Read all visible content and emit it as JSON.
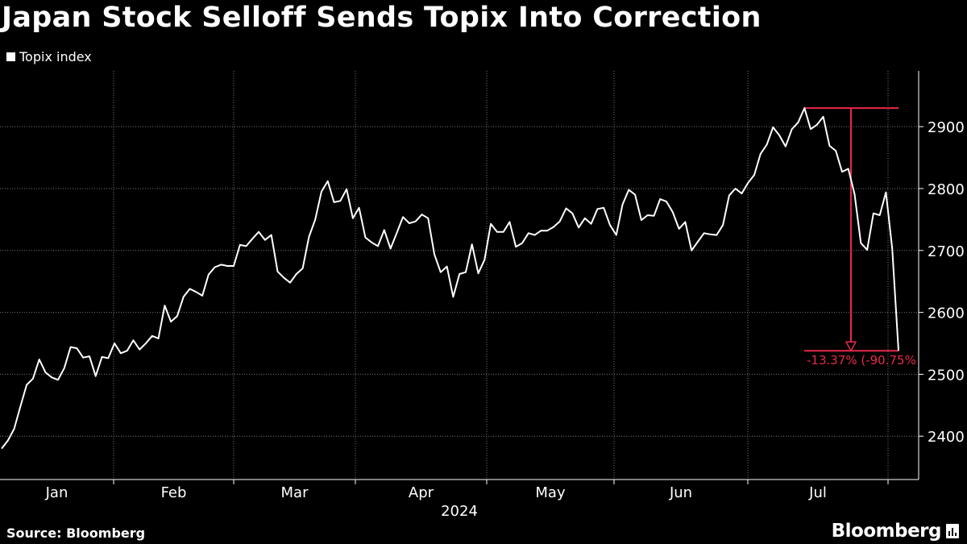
{
  "header": {
    "title": "Japan Stock Selloff Sends Topix Into Correction",
    "legend_label": "Topix index"
  },
  "footer": {
    "source": "Source: Bloomberg",
    "brand": "Bloomberg"
  },
  "colors": {
    "background": "#000000",
    "line": "#ffffff",
    "annotation": "#e8294a",
    "grid": "#777777"
  },
  "chart_data": {
    "type": "line",
    "title": "Japan Stock Selloff Sends Topix Into Correction",
    "xlabel": "2024",
    "ylabel": "",
    "series": [
      {
        "name": "Topix index",
        "values": [
          2380,
          2393,
          2412,
          2448,
          2483,
          2493,
          2524,
          2503,
          2495,
          2491,
          2510,
          2544,
          2542,
          2527,
          2529,
          2497,
          2528,
          2526,
          2550,
          2534,
          2538,
          2555,
          2540,
          2550,
          2562,
          2558,
          2611,
          2585,
          2594,
          2625,
          2638,
          2633,
          2627,
          2661,
          2673,
          2677,
          2675,
          2675,
          2709,
          2707,
          2719,
          2730,
          2717,
          2725,
          2666,
          2656,
          2648,
          2662,
          2671,
          2722,
          2750,
          2795,
          2812,
          2778,
          2780,
          2799,
          2752,
          2769,
          2721,
          2713,
          2707,
          2733,
          2703,
          2728,
          2754,
          2744,
          2747,
          2758,
          2752,
          2694,
          2665,
          2674,
          2625,
          2662,
          2665,
          2710,
          2663,
          2685,
          2743,
          2730,
          2730,
          2746,
          2706,
          2712,
          2728,
          2725,
          2732,
          2732,
          2738,
          2747,
          2768,
          2760,
          2737,
          2752,
          2743,
          2767,
          2769,
          2741,
          2725,
          2774,
          2798,
          2790,
          2749,
          2757,
          2756,
          2783,
          2779,
          2762,
          2735,
          2746,
          2700,
          2714,
          2728,
          2726,
          2725,
          2741,
          2789,
          2800,
          2792,
          2809,
          2822,
          2856,
          2871,
          2899,
          2886,
          2868,
          2896,
          2907,
          2930,
          2896,
          2903,
          2916,
          2869,
          2861,
          2827,
          2832,
          2791,
          2712,
          2701,
          2760,
          2757,
          2794,
          2703,
          2538
        ]
      }
    ],
    "x_start": "2024-01-02",
    "x_end": "2024-08-02",
    "month_ticks": [
      "Jan",
      "Feb",
      "Mar",
      "Apr",
      "May",
      "Jun",
      "Jul"
    ],
    "year_label": "2024",
    "y_ticks": [
      2400,
      2500,
      2600,
      2700,
      2800,
      2900
    ],
    "ylim": [
      2330,
      2990
    ],
    "grid": true,
    "annotation": {
      "peak_value": 2930,
      "last_value": 2538,
      "label": "-13.37% (-90.75%"
    }
  }
}
